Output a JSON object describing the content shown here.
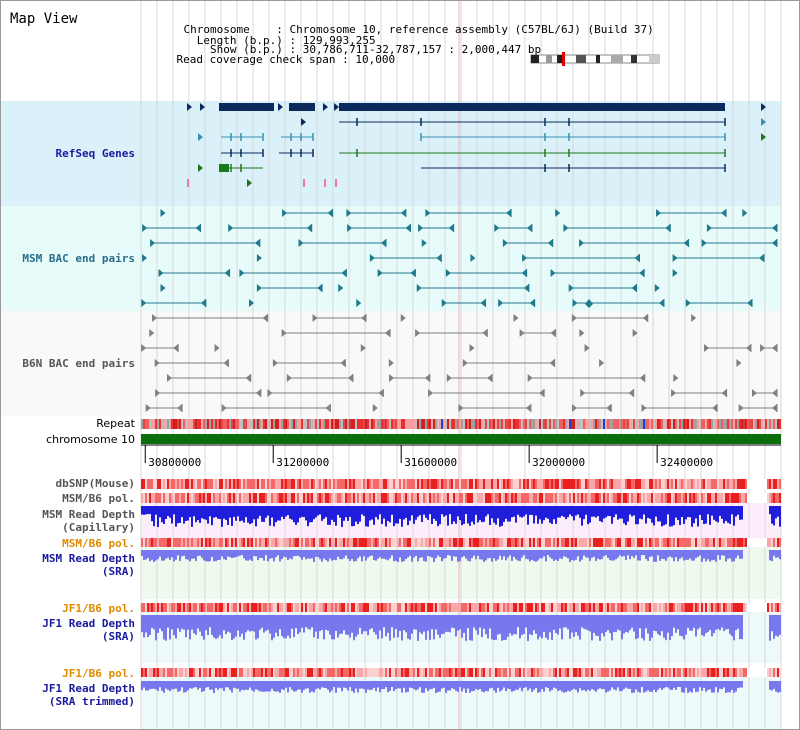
{
  "page": {
    "title": "Map View",
    "chromosome_label": "Chromosome",
    "chromosome_value": "Chromosome 10, reference assembly (C57BL/6J) (Build 37)",
    "length_label": "Length (b.p.)",
    "length_value": "129,993,255",
    "show_label": "Show (b.p.)",
    "show_value": "30,786,711-32,787,157 : 2,000,447 bp",
    "coverage_label": "Read coverage check span",
    "coverage_value": "10,000"
  },
  "tracks": {
    "refseq": "RefSeq Genes",
    "msm_bac": "MSM BAC end pairs",
    "b6n_bac": "B6N BAC end pairs",
    "repeat": "Repeat",
    "chromosome": "chromosome 10",
    "dbsnp": "dbSNP(Mouse)",
    "msm_pol": "MSM/B6 pol.",
    "msm_depth_cap_1": "MSM Read Depth",
    "msm_depth_cap_2": "(Capillary)",
    "msm_pol2": "MSM/B6 pol.",
    "msm_depth_sra_1": "MSM Read Depth",
    "msm_depth_sra_2": "(SRA)",
    "jf1_pol": "JF1/B6 pol.",
    "jf1_depth_sra_1": "JF1 Read Depth",
    "jf1_depth_sra_2": "(SRA)",
    "jf1_pol2": "JF1/B6 pol.",
    "jf1_depth_trim_1": "JF1 Read Depth",
    "jf1_depth_trim_2": "(SRA trimmed)"
  },
  "axis": {
    "ticks": [
      "30800000",
      "31200000",
      "31600000",
      "32000000",
      "32400000"
    ],
    "tick_values": [
      30800000,
      31200000,
      31600000,
      32000000,
      32400000
    ],
    "range": [
      30786711,
      32787157
    ]
  },
  "colors": {
    "refseq_bg": "#daf1fa",
    "bac_bg": "#e8fbfb",
    "b6n_bg": "#f7f9fa",
    "gene_dark": "#0a2a5e",
    "gene_teal": "#3a8fb0",
    "gene_green": "#1a7a1a",
    "msm_line": "#1f7a8c",
    "b6n_line": "#808080",
    "chrom_green": "#0a6e0a",
    "depth_blue": "#1e1edc",
    "depth_light": "#7878ee",
    "pol_red": "#f04848"
  }
}
